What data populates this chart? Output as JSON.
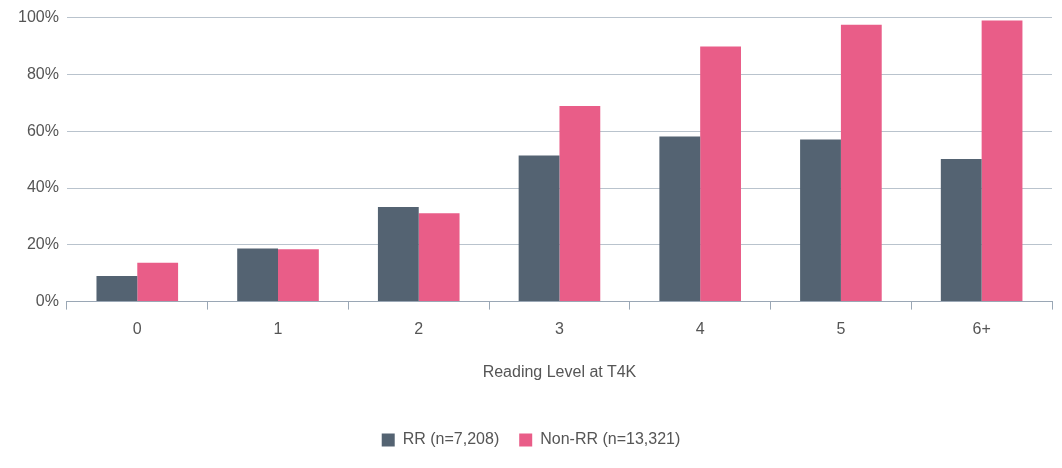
{
  "chart_data": {
    "type": "bar",
    "xlabel": "Reading Level at T4K",
    "categories": [
      "0",
      "1",
      "2",
      "3",
      "4",
      "5",
      "6+"
    ],
    "series": [
      {
        "name": "RR (n=7,208)",
        "color": "#546372",
        "values": [
          9,
          18.7,
          33.3,
          51.4,
          58.1,
          57.1,
          50.2
        ]
      },
      {
        "name": "Non-RR (n=13,321)",
        "color": "#e95d88",
        "values": [
          13.7,
          18.4,
          31.1,
          68.9,
          89.8,
          97.5,
          99
        ]
      }
    ],
    "ylim": [
      0,
      100
    ],
    "yticks": [
      {
        "value": 0,
        "label": "0%"
      },
      {
        "value": 20,
        "label": "20%"
      },
      {
        "value": 40,
        "label": "40%"
      },
      {
        "value": 60,
        "label": "60%"
      },
      {
        "value": 80,
        "label": "80%"
      },
      {
        "value": 100,
        "label": "100%"
      }
    ],
    "grid": "y",
    "legend": "bottom"
  }
}
